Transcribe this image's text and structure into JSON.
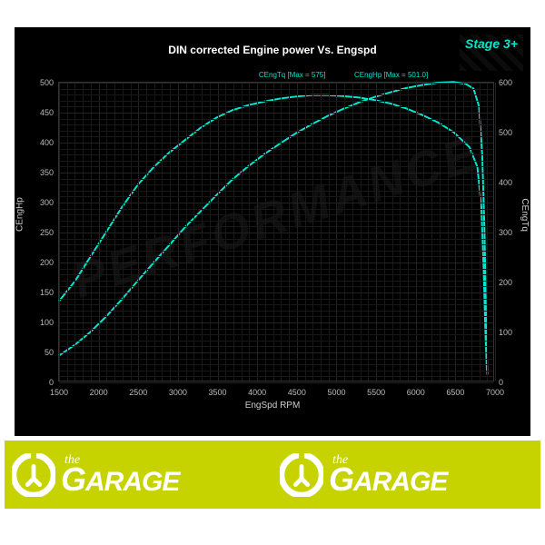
{
  "chart": {
    "title": "DIN corrected Engine power Vs. Engspd",
    "stage_label": "Stage 3+",
    "watermark": "PERFORMANCE",
    "title_color": "#ffffff",
    "title_fontsize": 12,
    "stage_color": "#00e5d0",
    "background_color": "#000000",
    "grid_color": "#222222",
    "axis_text_color": "#bbbbbb",
    "x_axis": {
      "title": "EngSpd RPM",
      "min": 1500,
      "max": 7000,
      "ticks": [
        1500,
        2000,
        2500,
        3000,
        3500,
        4000,
        4500,
        5000,
        5500,
        6000,
        6500,
        7000
      ]
    },
    "y_left": {
      "title": "CEngHp",
      "min": 0,
      "max": 500,
      "ticks": [
        0,
        50,
        100,
        150,
        200,
        250,
        300,
        350,
        400,
        450,
        500
      ]
    },
    "y_right": {
      "title": "CEngTq",
      "min": 0,
      "max": 600,
      "ticks": [
        0,
        100,
        200,
        300,
        400,
        500,
        600
      ]
    },
    "series": [
      {
        "name": "CEngTq",
        "label": "CEngTq [Max = 575]",
        "max": 575,
        "color": "#00e5d0",
        "line_width": 2,
        "axis": "right",
        "label_pos": {
          "x_pct": 46,
          "y_pct": -4
        },
        "points": [
          [
            1500,
            160
          ],
          [
            1700,
            200
          ],
          [
            1900,
            250
          ],
          [
            2100,
            300
          ],
          [
            2300,
            350
          ],
          [
            2500,
            395
          ],
          [
            2700,
            430
          ],
          [
            2900,
            460
          ],
          [
            3100,
            485
          ],
          [
            3300,
            510
          ],
          [
            3500,
            530
          ],
          [
            3700,
            545
          ],
          [
            3900,
            555
          ],
          [
            4100,
            562
          ],
          [
            4300,
            568
          ],
          [
            4500,
            572
          ],
          [
            4700,
            575
          ],
          [
            4900,
            575
          ],
          [
            5100,
            573
          ],
          [
            5300,
            570
          ],
          [
            5500,
            565
          ],
          [
            5700,
            558
          ],
          [
            5900,
            548
          ],
          [
            6100,
            535
          ],
          [
            6300,
            520
          ],
          [
            6500,
            500
          ],
          [
            6700,
            470
          ],
          [
            6800,
            430
          ],
          [
            6850,
            350
          ],
          [
            6880,
            220
          ],
          [
            6900,
            100
          ],
          [
            6920,
            20
          ]
        ]
      },
      {
        "name": "CEngHp",
        "label": "CEngHp [Max = 501.0]",
        "max": 501.0,
        "color": "#00e5d0",
        "line_width": 2,
        "axis": "left",
        "label_pos": {
          "x_pct": 68,
          "y_pct": -4
        },
        "points": [
          [
            1500,
            42
          ],
          [
            1700,
            60
          ],
          [
            1900,
            82
          ],
          [
            2100,
            108
          ],
          [
            2300,
            137
          ],
          [
            2500,
            168
          ],
          [
            2700,
            198
          ],
          [
            2900,
            228
          ],
          [
            3100,
            258
          ],
          [
            3300,
            285
          ],
          [
            3500,
            312
          ],
          [
            3700,
            338
          ],
          [
            3900,
            360
          ],
          [
            4100,
            380
          ],
          [
            4300,
            398
          ],
          [
            4500,
            415
          ],
          [
            4700,
            430
          ],
          [
            4900,
            444
          ],
          [
            5100,
            456
          ],
          [
            5300,
            467
          ],
          [
            5500,
            476
          ],
          [
            5700,
            484
          ],
          [
            5900,
            491
          ],
          [
            6100,
            496
          ],
          [
            6300,
            500
          ],
          [
            6500,
            501
          ],
          [
            6650,
            498
          ],
          [
            6750,
            490
          ],
          [
            6820,
            460
          ],
          [
            6860,
            380
          ],
          [
            6890,
            250
          ],
          [
            6910,
            100
          ],
          [
            6925,
            10
          ]
        ]
      }
    ]
  },
  "footer": {
    "background_color": "#c6d300",
    "icon_name": "wrench-icon",
    "text_the": "the",
    "text_main": "GARAGE",
    "text_color": "#ffffff"
  }
}
